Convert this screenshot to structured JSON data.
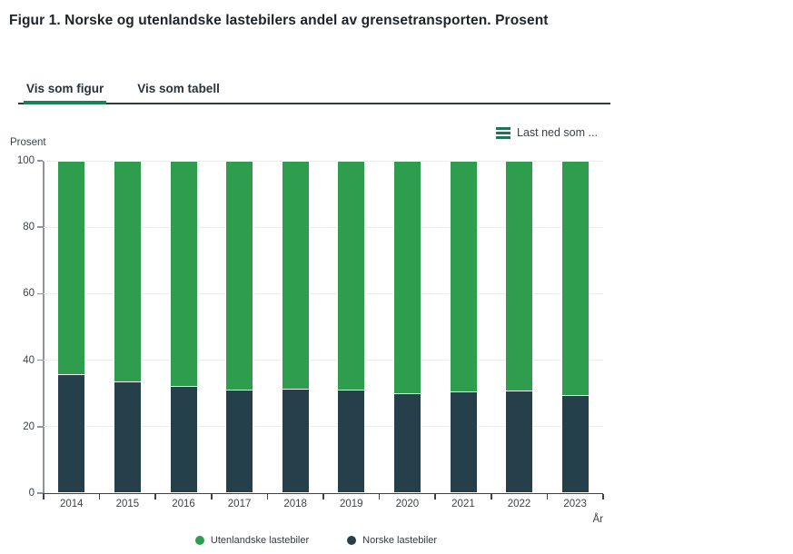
{
  "page": {
    "title": "Figur 1. Norske og utenlandske lastebilers andel av grensetransporten. Prosent"
  },
  "tabs": [
    {
      "label": "Vis som figur",
      "active": true
    },
    {
      "label": "Vis som tabell",
      "active": false
    }
  ],
  "toolbar": {
    "download_label": "Last ned som ...",
    "menu_icon": "hamburger-icon"
  },
  "colors": {
    "foreign_bar_green": "#2e9d4e",
    "norwegian_bar_dark": "#26404b",
    "active_tab_underline_green": "#1b8157",
    "menu_icon_green": "#1d7458"
  },
  "chart_data": {
    "type": "bar",
    "stacked": true,
    "categories": [
      "2014",
      "2015",
      "2016",
      "2017",
      "2018",
      "2019",
      "2020",
      "2021",
      "2022",
      "2023"
    ],
    "series": [
      {
        "name": "Utenlandske lastebiler",
        "color": "#2e9d4e",
        "values": [
          64.1,
          66.3,
          67.7,
          68.8,
          68.5,
          68.8,
          70.0,
          69.4,
          69.0,
          70.4
        ]
      },
      {
        "name": "Norske lastebiler",
        "color": "#26404b",
        "values": [
          35.9,
          33.7,
          32.3,
          31.2,
          31.5,
          31.2,
          30.0,
          30.6,
          31.0,
          29.6
        ]
      }
    ],
    "ylabel": "Prosent",
    "xlabel": "År",
    "ylim": [
      0,
      100
    ],
    "yticks": [
      0,
      20,
      40,
      60,
      80,
      100
    ],
    "grid": true,
    "legend_position": "bottom"
  }
}
